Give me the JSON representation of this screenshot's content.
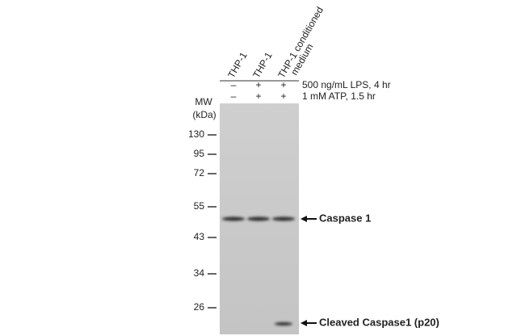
{
  "lanes": [
    {
      "lines": [
        "THP-1"
      ]
    },
    {
      "lines": [
        "THP-1"
      ]
    },
    {
      "lines": [
        "THP-1 conditioned",
        "medium"
      ]
    }
  ],
  "treatments": [
    {
      "label": "500 ng/mL LPS, 4 hr",
      "signs": [
        "–",
        "+",
        "+"
      ]
    },
    {
      "label": "1 mM ATP,  1.5 hr",
      "signs": [
        "–",
        "+",
        "+"
      ]
    }
  ],
  "mw": {
    "title": "MW",
    "unit": "(kDa)",
    "markers": [
      130,
      95,
      72,
      55,
      43,
      34,
      26
    ]
  },
  "bands": [
    {
      "label": "Caspase 1"
    },
    {
      "label": "Cleaved Caspase1 (p20)"
    }
  ]
}
